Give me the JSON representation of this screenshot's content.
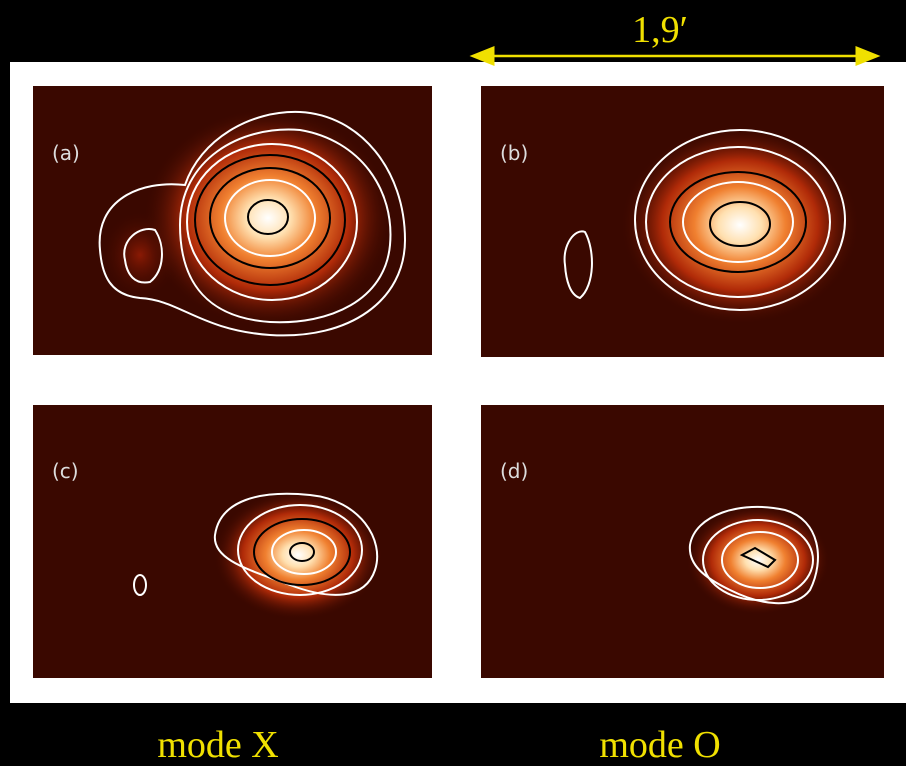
{
  "scale_bar": {
    "label": "1,9′"
  },
  "panels": [
    {
      "label": "(a)"
    },
    {
      "label": "(b)"
    },
    {
      "label": "(c)"
    },
    {
      "label": "(d)"
    }
  ],
  "captions": [
    "mode X",
    "mode O"
  ]
}
